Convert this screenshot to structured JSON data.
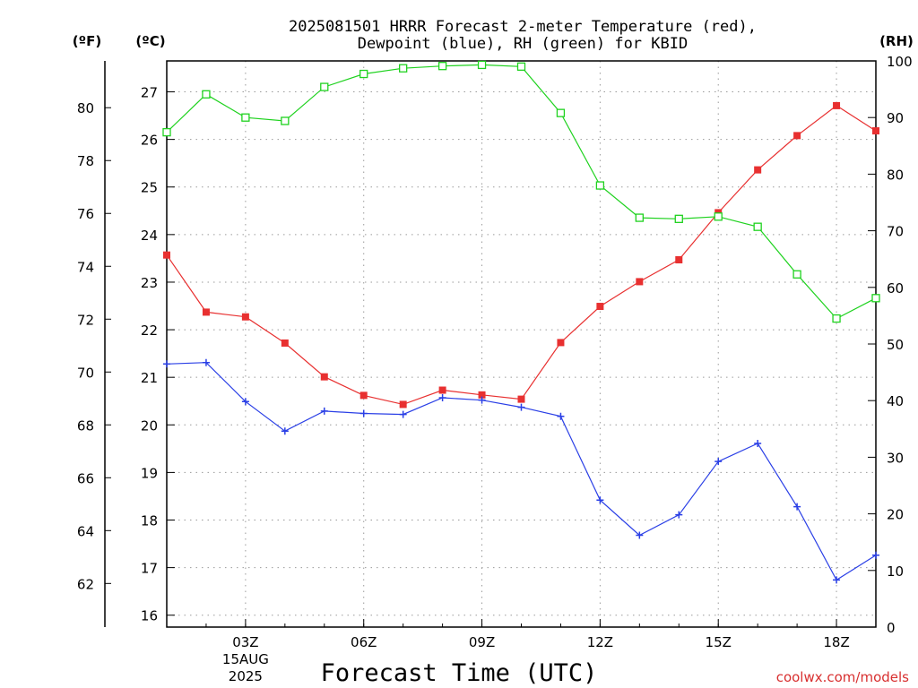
{
  "title": {
    "line1": "2025081501 HRRR Forecast 2-meter Temperature (red),",
    "line2": "Dewpoint (blue), RH (green) for KBID"
  },
  "axis_units": {
    "fahrenheit": "(ºF)",
    "celsius": "(ºC)",
    "rh": "(RH)"
  },
  "credit": "coolwx.com/models",
  "colors": {
    "temperature": "#e83030",
    "dewpoint": "#2a3fe6",
    "rh": "#1fd21f",
    "credit": "#d83030"
  },
  "chart_data": {
    "type": "line",
    "title": "2025081501 HRRR Forecast 2-meter Temperature (red), Dewpoint (blue), RH (green) for KBID",
    "xlabel": "Forecast Time (UTC)",
    "x_hours": [
      1,
      2,
      3,
      4,
      5,
      6,
      7,
      8,
      9,
      10,
      11,
      12,
      13,
      14,
      15,
      16,
      17,
      18,
      19
    ],
    "x_ticks": [
      {
        "hour": 3,
        "label": "03Z",
        "sub1": "15AUG",
        "sub2": "2025"
      },
      {
        "hour": 6,
        "label": "06Z"
      },
      {
        "hour": 9,
        "label": "09Z"
      },
      {
        "hour": 12,
        "label": "12Z"
      },
      {
        "hour": 15,
        "label": "15Z"
      },
      {
        "hour": 18,
        "label": "18Z"
      }
    ],
    "xlim": [
      1,
      19
    ],
    "celsius_axis": {
      "ylim": [
        15.75,
        27.65
      ],
      "ticks": [
        "16",
        "17",
        "18",
        "19",
        "20",
        "21",
        "22",
        "23",
        "24",
        "25",
        "26",
        "27"
      ]
    },
    "fahrenheit_axis": {
      "ticks": [
        "62",
        "64",
        "66",
        "68",
        "70",
        "72",
        "74",
        "76",
        "78",
        "80"
      ]
    },
    "rh_axis": {
      "ylim": [
        0,
        100
      ],
      "ticks": [
        "0",
        "10",
        "20",
        "30",
        "40",
        "50",
        "60",
        "70",
        "80",
        "90",
        "100"
      ]
    },
    "grid": true,
    "series": [
      {
        "axis": "celsius",
        "marker": "filled-square",
        "color": "#e83030",
        "values": [
          23.57,
          22.37,
          22.27,
          21.72,
          21.01,
          20.62,
          20.43,
          20.73,
          20.63,
          20.54,
          21.73,
          22.49,
          23.01,
          23.47,
          24.46,
          25.36,
          26.08,
          26.71,
          26.18
        ]
      },
      {
        "axis": "celsius",
        "marker": "plus",
        "color": "#2a3fe6",
        "values": [
          21.28,
          21.31,
          20.49,
          19.87,
          20.29,
          20.24,
          20.22,
          20.57,
          20.52,
          20.37,
          20.18,
          18.42,
          17.68,
          18.11,
          19.23,
          19.61,
          18.28,
          16.74,
          17.26
        ]
      },
      {
        "axis": "rh",
        "marker": "open-square",
        "color": "#1fd21f",
        "values": [
          87.4,
          94.1,
          90.0,
          89.4,
          95.4,
          97.7,
          98.7,
          99.1,
          99.3,
          99.0,
          90.8,
          78.0,
          72.3,
          72.1,
          72.5,
          70.7,
          62.3,
          54.5,
          58.1
        ]
      }
    ]
  }
}
